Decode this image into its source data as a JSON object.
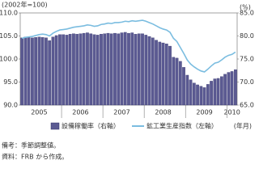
{
  "chart_data": {
    "type": "bar-line",
    "y_label": "(2002年=100)",
    "y2_label": "(%)",
    "x_label": "(年月)",
    "categories": [
      null,
      null,
      null,
      null,
      null,
      "2005",
      null,
      null,
      null,
      null,
      null,
      null,
      null,
      null,
      null,
      null,
      null,
      "2006",
      null,
      null,
      null,
      null,
      null,
      null,
      null,
      null,
      null,
      null,
      null,
      "2007",
      null,
      null,
      null,
      null,
      null,
      null,
      null,
      null,
      null,
      null,
      null,
      "2008",
      null,
      null,
      null,
      null,
      null,
      null,
      null,
      null,
      null,
      null,
      null,
      "2009",
      null,
      null,
      null,
      null,
      null,
      null,
      null,
      "2010",
      null
    ],
    "ylim": [
      90,
      110
    ],
    "yticks": [
      {
        "value": 90,
        "label": "90.0"
      },
      {
        "value": 95,
        "label": "95.0"
      },
      {
        "value": 100,
        "label": "100.0"
      },
      {
        "value": 105,
        "label": "105.0"
      },
      {
        "value": 110,
        "label": "110.0"
      }
    ],
    "y2lim": [
      65,
      85
    ],
    "y2ticks": [
      {
        "value": 65,
        "label": "65.0"
      },
      {
        "value": 70,
        "label": "70.0"
      },
      {
        "value": 75,
        "label": "75.0"
      },
      {
        "value": 80,
        "label": "80.0"
      },
      {
        "value": 85,
        "label": "85.0"
      }
    ],
    "series": [
      {
        "name": "設備稼働率（右軸）",
        "type": "bar",
        "axis": "y2",
        "color": "#5b5a92",
        "values": [
          79.6,
          79.8,
          79.7,
          79.6,
          79.7,
          79.8,
          79.7,
          79.6,
          79.0,
          79.8,
          80.1,
          80.3,
          80.3,
          80.2,
          80.4,
          80.5,
          80.4,
          80.5,
          80.6,
          80.7,
          80.5,
          80.3,
          80.2,
          80.4,
          80.5,
          80.6,
          80.5,
          80.6,
          80.5,
          80.7,
          80.8,
          80.6,
          80.7,
          80.4,
          80.5,
          80.5,
          80.2,
          79.9,
          79.6,
          79.1,
          78.7,
          78.5,
          78.3,
          77.8,
          75.4,
          75.2,
          74.5,
          73.2,
          71.5,
          70.5,
          69.8,
          69.4,
          69.1,
          68.8,
          69.5,
          70.2,
          70.7,
          70.8,
          71.2,
          71.7,
          72.1,
          72.3,
          72.7
        ]
      },
      {
        "name": "鉱工業生産指数（左軸）",
        "type": "line",
        "axis": "y",
        "color": "#7bbde0",
        "values": [
          104.5,
          104.7,
          104.8,
          104.9,
          105.1,
          105.3,
          105.4,
          105.3,
          105.0,
          105.6,
          106.0,
          106.3,
          106.4,
          106.5,
          106.7,
          106.9,
          107.0,
          107.1,
          107.2,
          107.4,
          107.3,
          107.1,
          107.2,
          107.5,
          107.6,
          107.8,
          107.7,
          107.9,
          107.9,
          108.0,
          108.2,
          108.1,
          108.3,
          108.2,
          108.3,
          108.4,
          108.2,
          107.9,
          107.6,
          107.2,
          106.8,
          106.5,
          106.3,
          105.8,
          104.5,
          103.8,
          102.5,
          101.2,
          99.8,
          98.9,
          98.3,
          97.8,
          97.4,
          97.2,
          97.8,
          98.5,
          99.1,
          99.3,
          99.8,
          100.4,
          100.8,
          101.0,
          101.5
        ]
      }
    ],
    "notes": [
      "備考：季節調整値。",
      "資料：FRB から作成。"
    ]
  }
}
